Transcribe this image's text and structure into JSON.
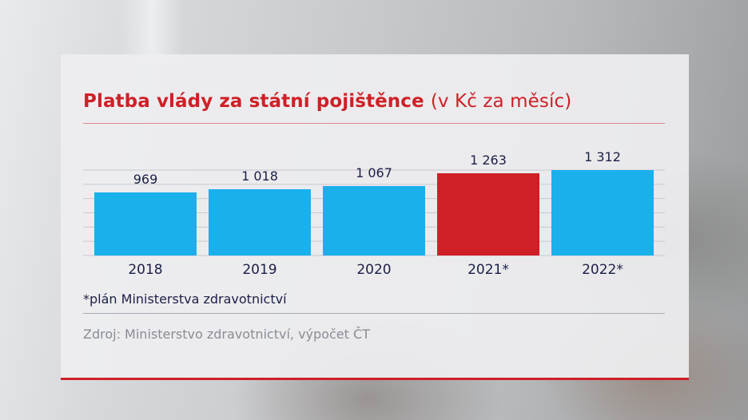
{
  "chart_data": {
    "type": "bar",
    "title": "Platba vlády za státní pojištěnce",
    "title_unit": "(v Kč za měsíc)",
    "categories": [
      "2018",
      "2019",
      "2020",
      "2021*",
      "2022*"
    ],
    "values": [
      969,
      1018,
      1067,
      1263,
      1312
    ],
    "value_labels": [
      "969",
      "1 018",
      "1 067",
      "1 263",
      "1 312"
    ],
    "highlight_index": 3,
    "ylim": [
      0,
      1312
    ],
    "grid": true,
    "footnote": "*plán Ministerstva zdravotnictví",
    "source": "Zdroj: Ministerstvo zdravotnictví, výpočet ČT"
  },
  "colors": {
    "bar": "#1ab0ec",
    "bar_highlight": "#cf2027",
    "title": "#cf2027",
    "text_dark": "#1b1f46",
    "text_muted": "#8a8c96"
  }
}
